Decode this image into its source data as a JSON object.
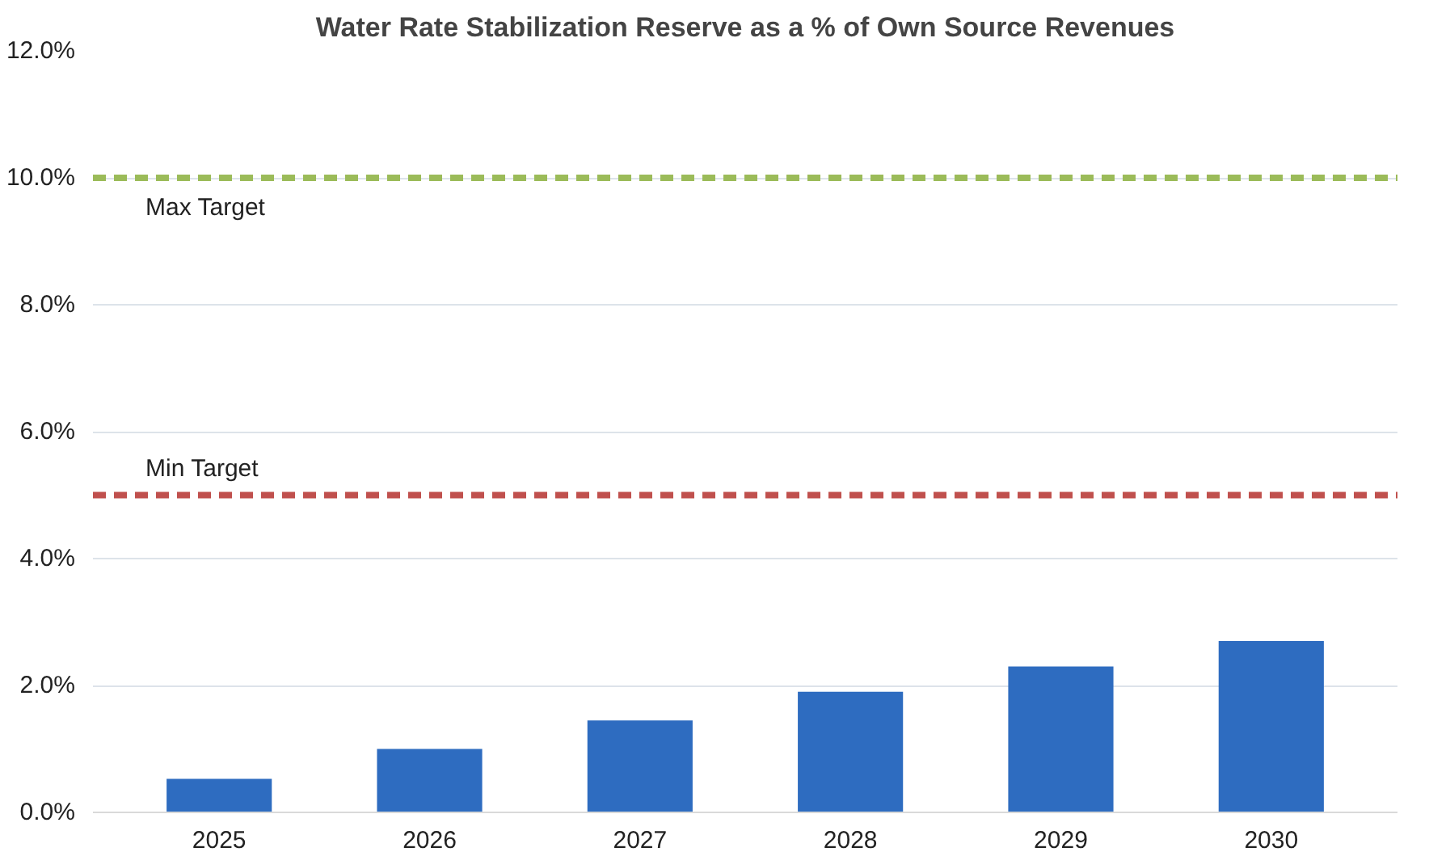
{
  "chart_data": {
    "type": "bar",
    "title": "Water Rate Stabilization Reserve as a % of Own Source Revenues",
    "categories": [
      "2025",
      "2026",
      "2027",
      "2028",
      "2029",
      "2030"
    ],
    "values": [
      0.53,
      1.0,
      1.45,
      1.9,
      2.3,
      2.7
    ],
    "color": "#2e6cc0",
    "ylim": [
      0,
      12
    ],
    "yticks": [
      {
        "value": 0,
        "label": "0.0%"
      },
      {
        "value": 2,
        "label": "2.0%"
      },
      {
        "value": 4,
        "label": "4.0%"
      },
      {
        "value": 6,
        "label": "6.0%"
      },
      {
        "value": 8,
        "label": "8.0%"
      },
      {
        "value": 10,
        "label": "10.0%"
      },
      {
        "value": 12,
        "label": "12.0%"
      }
    ],
    "grid": "y",
    "ref_lines": [
      {
        "axis": "y",
        "value": 10,
        "label": "Max Target",
        "color": "#9bbb59",
        "line_style": "dashed"
      },
      {
        "axis": "y",
        "value": 5,
        "label": "Min Target",
        "color": "#c0504d",
        "line_style": "dashed"
      }
    ]
  }
}
